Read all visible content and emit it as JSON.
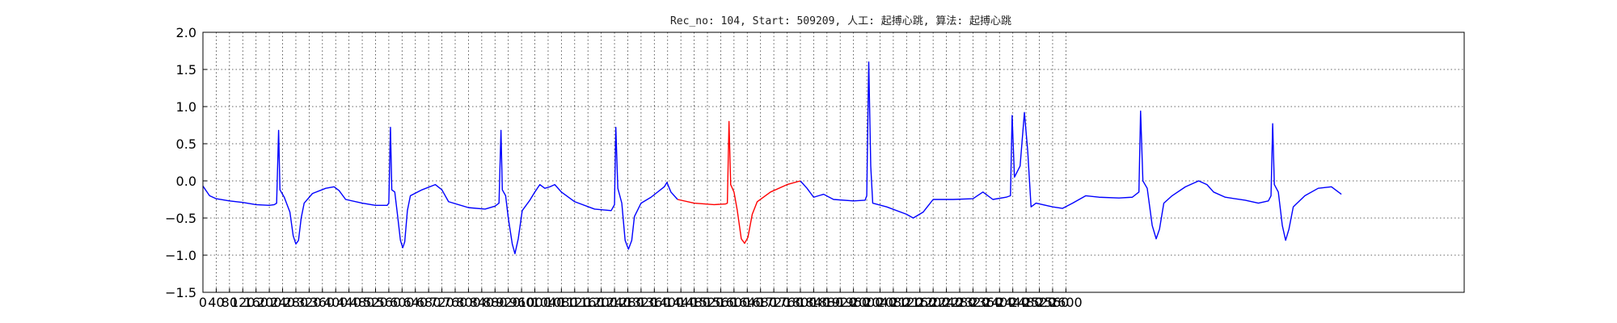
{
  "chart_data": {
    "type": "line",
    "title": "Rec_no: 104, Start: 509209, 人工: 起搏心跳, 算法: 起搏心跳",
    "xlabel": "",
    "ylabel": "",
    "xlim": [
      0,
      3800
    ],
    "ylim": [
      -1.5,
      2.0
    ],
    "grid": true,
    "x_ticks": [
      0,
      40,
      80,
      120,
      160,
      200,
      240,
      280,
      320,
      360,
      400,
      440,
      480,
      520,
      560,
      600,
      640,
      680,
      720,
      760,
      800,
      840,
      880,
      920,
      960,
      1000,
      1040,
      1080,
      1120,
      1160,
      1200,
      1240,
      1280,
      1320,
      1360,
      1400,
      1440,
      1480,
      1520,
      1560,
      1600,
      1640,
      1680,
      1720,
      1760,
      1800,
      1840,
      1880,
      1920,
      1960,
      2000,
      2040,
      2080,
      2120,
      2160,
      2200,
      2240,
      2280,
      2320,
      2360,
      2400,
      2440,
      2480,
      2520,
      2560,
      2600
    ],
    "y_ticks": [
      2.0,
      1.5,
      1.0,
      0.5,
      0.0,
      -0.5,
      -1.0,
      -1.5
    ],
    "x_tick_labels": [
      "0",
      "40",
      "80",
      "120",
      "160",
      "200",
      "240",
      "280",
      "320",
      "360",
      "400",
      "440",
      "480",
      "520",
      "560",
      "600",
      "640",
      "680",
      "720",
      "760",
      "800",
      "840",
      "880",
      "920",
      "960",
      "1000",
      "1040",
      "1080",
      "1120",
      "1160",
      "1200",
      "1240",
      "1280",
      "1320",
      "1360",
      "1400",
      "1440",
      "1480",
      "1520",
      "1560",
      "1600",
      "1640",
      "1680",
      "1720",
      "1760",
      "1800",
      "1840",
      "1880",
      "1920",
      "1960",
      "2000",
      "2040",
      "2080",
      "2120",
      "2160",
      "2200",
      "2240",
      "2280",
      "2320",
      "2360",
      "2400",
      "2440",
      "2480",
      "2520",
      "2560",
      "2600"
    ],
    "y_tick_labels": [
      "2.0",
      "1.5",
      "1.0",
      "0.5",
      "0.0",
      "−0.5",
      "−1.0",
      "−1.5"
    ],
    "series": [
      {
        "color": "#0000ff",
        "segments": [
          [
            [
              0,
              -0.07
            ],
            [
              20,
              -0.2
            ],
            [
              40,
              -0.24
            ],
            [
              80,
              -0.27
            ],
            [
              120,
              -0.29
            ],
            [
              160,
              -0.32
            ],
            [
              200,
              -0.33
            ],
            [
              215,
              -0.32
            ],
            [
              222,
              -0.3
            ],
            [
              228,
              0.68
            ],
            [
              232,
              -0.12
            ],
            [
              245,
              -0.22
            ],
            [
              262,
              -0.42
            ],
            [
              272,
              -0.74
            ],
            [
              280,
              -0.85
            ],
            [
              288,
              -0.8
            ],
            [
              296,
              -0.5
            ],
            [
              305,
              -0.3
            ],
            [
              330,
              -0.17
            ],
            [
              370,
              -0.1
            ],
            [
              395,
              -0.08
            ],
            [
              410,
              -0.13
            ],
            [
              430,
              -0.25
            ],
            [
              480,
              -0.3
            ],
            [
              520,
              -0.33
            ],
            [
              555,
              -0.33
            ],
            [
              560,
              -0.3
            ],
            [
              565,
              0.72
            ],
            [
              569,
              -0.12
            ],
            [
              578,
              -0.15
            ],
            [
              586,
              -0.45
            ],
            [
              595,
              -0.8
            ],
            [
              602,
              -0.9
            ],
            [
              608,
              -0.82
            ],
            [
              616,
              -0.4
            ],
            [
              625,
              -0.2
            ],
            [
              660,
              -0.12
            ],
            [
              700,
              -0.05
            ],
            [
              720,
              -0.12
            ],
            [
              740,
              -0.28
            ],
            [
              800,
              -0.36
            ],
            [
              850,
              -0.38
            ],
            [
              880,
              -0.34
            ],
            [
              892,
              -0.3
            ],
            [
              898,
              0.68
            ],
            [
              902,
              -0.12
            ],
            [
              912,
              -0.2
            ],
            [
              920,
              -0.5
            ],
            [
              932,
              -0.85
            ],
            [
              940,
              -0.98
            ],
            [
              950,
              -0.78
            ],
            [
              962,
              -0.4
            ],
            [
              985,
              -0.26
            ],
            [
              1000,
              -0.15
            ],
            [
              1015,
              -0.05
            ],
            [
              1030,
              -0.1
            ],
            [
              1045,
              -0.08
            ],
            [
              1060,
              -0.05
            ],
            [
              1080,
              -0.15
            ],
            [
              1120,
              -0.28
            ],
            [
              1180,
              -0.38
            ],
            [
              1230,
              -0.4
            ],
            [
              1240,
              -0.32
            ],
            [
              1244,
              0.72
            ],
            [
              1250,
              -0.1
            ],
            [
              1262,
              -0.3
            ],
            [
              1272,
              -0.8
            ],
            [
              1282,
              -0.92
            ],
            [
              1292,
              -0.8
            ],
            [
              1300,
              -0.48
            ],
            [
              1320,
              -0.3
            ],
            [
              1350,
              -0.22
            ],
            [
              1390,
              -0.08
            ],
            [
              1398,
              -0.02
            ],
            [
              1410,
              -0.15
            ],
            [
              1430,
              -0.25
            ]
          ]
        ]
      },
      {
        "color": "#ff0000",
        "segments": [
          [
            [
              1430,
              -0.25
            ],
            [
              1480,
              -0.3
            ],
            [
              1540,
              -0.32
            ],
            [
              1575,
              -0.31
            ],
            [
              1580,
              -0.3
            ],
            [
              1585,
              0.8
            ],
            [
              1590,
              -0.05
            ],
            [
              1600,
              -0.15
            ],
            [
              1610,
              -0.4
            ],
            [
              1622,
              -0.78
            ],
            [
              1632,
              -0.84
            ],
            [
              1642,
              -0.76
            ],
            [
              1655,
              -0.45
            ],
            [
              1670,
              -0.28
            ],
            [
              1710,
              -0.15
            ],
            [
              1760,
              -0.05
            ],
            [
              1800,
              -0.0
            ]
          ]
        ]
      },
      {
        "color": "#0000ff",
        "segments": [
          [
            [
              1800,
              -0.0
            ],
            [
              1820,
              -0.1
            ],
            [
              1840,
              -0.22
            ],
            [
              1870,
              -0.18
            ],
            [
              1900,
              -0.25
            ],
            [
              1960,
              -0.27
            ],
            [
              1995,
              -0.26
            ],
            [
              2000,
              -0.2
            ],
            [
              2006,
              1.6
            ],
            [
              2012,
              0.2
            ],
            [
              2018,
              -0.3
            ],
            [
              2060,
              -0.35
            ],
            [
              2120,
              -0.45
            ],
            [
              2140,
              -0.5
            ],
            [
              2170,
              -0.42
            ],
            [
              2200,
              -0.25
            ],
            [
              2260,
              -0.25
            ],
            [
              2320,
              -0.24
            ],
            [
              2350,
              -0.15
            ],
            [
              2380,
              -0.25
            ],
            [
              2420,
              -0.22
            ],
            [
              2433,
              -0.2
            ],
            [
              2438,
              0.88
            ],
            [
              2445,
              0.05
            ],
            [
              2462,
              0.2
            ],
            [
              2475,
              0.92
            ],
            [
              2485,
              0.4
            ],
            [
              2495,
              -0.35
            ],
            [
              2510,
              -0.3
            ],
            [
              2560,
              -0.35
            ],
            [
              2590,
              -0.37
            ],
            [
              2620,
              -0.3
            ],
            [
              2660,
              -0.2
            ],
            [
              2700,
              -0.22
            ],
            [
              2760,
              -0.23
            ],
            [
              2800,
              -0.22
            ],
            [
              2820,
              -0.15
            ],
            [
              2825,
              0.94
            ],
            [
              2832,
              0.0
            ],
            [
              2845,
              -0.1
            ],
            [
              2860,
              -0.6
            ],
            [
              2872,
              -0.78
            ],
            [
              2882,
              -0.65
            ],
            [
              2895,
              -0.3
            ],
            [
              2920,
              -0.2
            ],
            [
              2960,
              -0.08
            ],
            [
              3000,
              -0.0
            ],
            [
              3025,
              -0.05
            ],
            [
              3045,
              -0.15
            ],
            [
              3080,
              -0.22
            ],
            [
              3140,
              -0.26
            ],
            [
              3180,
              -0.3
            ],
            [
              3210,
              -0.27
            ],
            [
              3218,
              -0.2
            ],
            [
              3223,
              0.77
            ],
            [
              3228,
              -0.05
            ],
            [
              3240,
              -0.15
            ],
            [
              3252,
              -0.6
            ],
            [
              3262,
              -0.8
            ],
            [
              3272,
              -0.65
            ],
            [
              3285,
              -0.35
            ],
            [
              3320,
              -0.2
            ],
            [
              3360,
              -0.1
            ],
            [
              3400,
              -0.08
            ],
            [
              3430,
              -0.18
            ]
          ]
        ]
      }
    ]
  }
}
